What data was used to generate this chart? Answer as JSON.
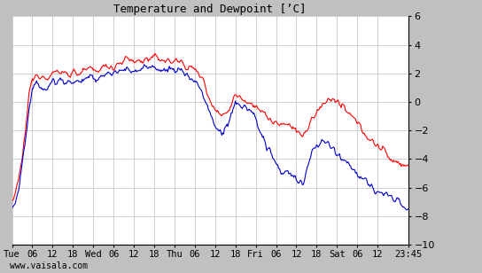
{
  "title": "Temperature and Dewpoint [’C]",
  "watermark": "www.vaisala.com",
  "ylim": [
    -10,
    6
  ],
  "yticks": [
    -10,
    -8,
    -6,
    -4,
    -2,
    0,
    2,
    4,
    6
  ],
  "bg_color": "#c0c0c0",
  "plot_bg_color": "#ffffff",
  "grid_color": "#c8c8c8",
  "temp_color": "#ff0000",
  "dew_color": "#0000cc",
  "line_width": 0.8,
  "x_tick_labels": [
    "Tue",
    "06",
    "12",
    "18",
    "Wed",
    "06",
    "12",
    "18",
    "Thu",
    "06",
    "12",
    "18",
    "Fri",
    "06",
    "12",
    "18",
    "Sat",
    "06",
    "12",
    "23:45"
  ],
  "x_tick_positions": [
    0,
    6,
    12,
    18,
    24,
    30,
    36,
    42,
    48,
    54,
    60,
    66,
    72,
    78,
    84,
    90,
    96,
    102,
    108,
    117
  ],
  "total_hours": 117
}
